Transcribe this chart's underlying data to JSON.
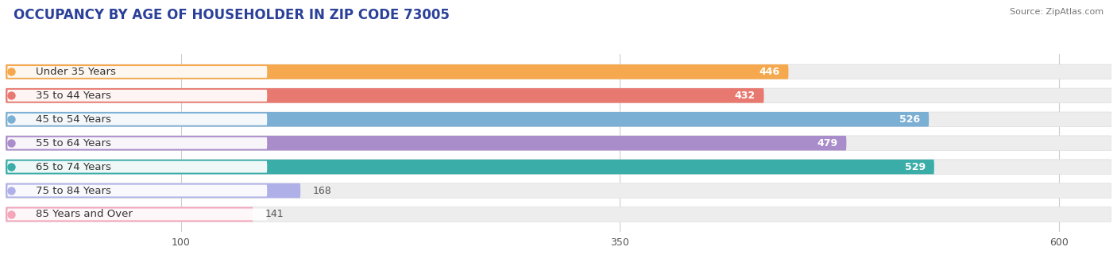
{
  "title": "OCCUPANCY BY AGE OF HOUSEHOLDER IN ZIP CODE 73005",
  "source": "Source: ZipAtlas.com",
  "categories": [
    "Under 35 Years",
    "35 to 44 Years",
    "45 to 54 Years",
    "55 to 64 Years",
    "65 to 74 Years",
    "75 to 84 Years",
    "85 Years and Over"
  ],
  "values": [
    446,
    432,
    526,
    479,
    529,
    168,
    141
  ],
  "bar_colors": [
    "#F5A84D",
    "#E87970",
    "#7BAFD4",
    "#A98CCA",
    "#3AADA8",
    "#B0B0E8",
    "#F4A6BB"
  ],
  "track_color": "#EDEDED",
  "label_bg_color": "#FFFFFF",
  "xlim_left": 0,
  "xlim_right": 630,
  "xticks": [
    100,
    350,
    600
  ],
  "label_fontsize": 9.5,
  "value_fontsize": 9,
  "title_fontsize": 12,
  "bar_height": 0.62,
  "background_color": "#FFFFFF",
  "title_color": "#2B4099",
  "source_color": "#777777",
  "label_text_color": "#333333",
  "value_color_inside": "#FFFFFF",
  "value_color_outside": "#555555",
  "grid_color": "#CCCCCC",
  "rounding": 12
}
